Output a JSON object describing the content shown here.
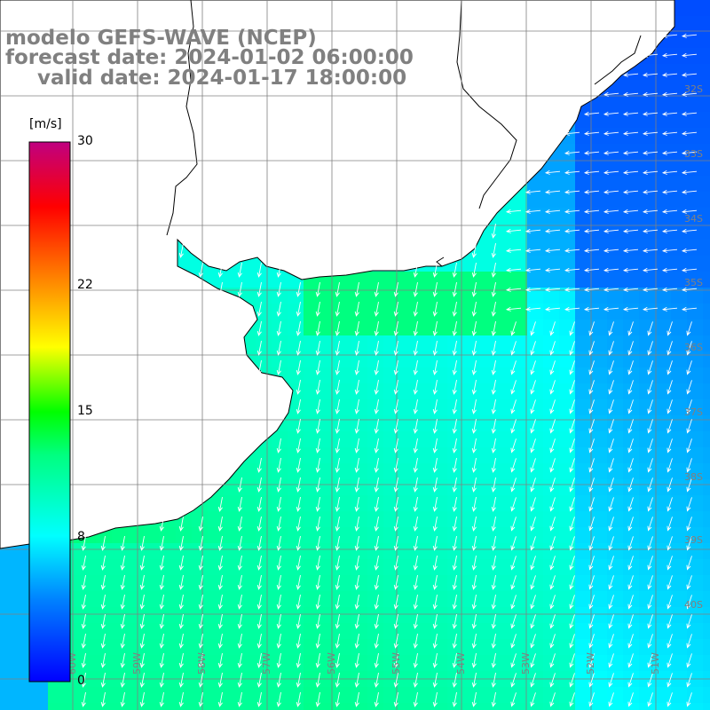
{
  "title": {
    "line1": "modelo GEFS-WAVE (NCEP)",
    "line2": "forecast date: 2024-01-02 06:00:00",
    "line3": "valid date: 2024-01-17 18:00:00"
  },
  "colorbar": {
    "unit": "[m/s]",
    "ticks": [
      {
        "value": 30,
        "label": "30"
      },
      {
        "value": 22,
        "label": "22"
      },
      {
        "value": 15,
        "label": "15"
      },
      {
        "value": 8,
        "label": "8"
      },
      {
        "value": 0,
        "label": "0"
      }
    ],
    "range": [
      0,
      30
    ],
    "colors": [
      "#0000ff",
      "#00a0ff",
      "#00ffff",
      "#00ff00",
      "#ffff00",
      "#ff8000",
      "#ff0000",
      "#c00080"
    ]
  },
  "map": {
    "lat_labels": [
      "32S",
      "33S",
      "34S",
      "35S",
      "36S",
      "37S",
      "38S",
      "39S",
      "40S"
    ],
    "lon_labels": [
      "60W",
      "59W",
      "58W",
      "57W",
      "56W",
      "55W",
      "54W",
      "53W",
      "52W",
      "51W"
    ],
    "land_color": "#ffffff",
    "grid_color": "#808080",
    "wind_direction": "southward, turning westward offshore"
  }
}
